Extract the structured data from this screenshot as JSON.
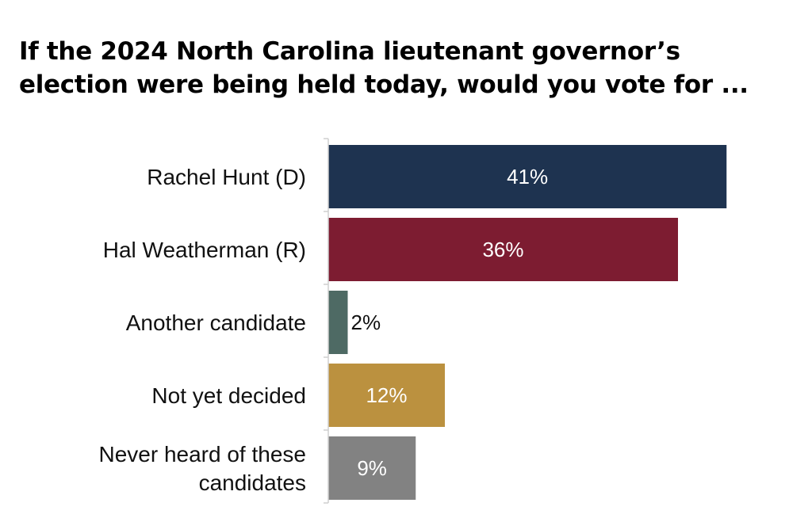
{
  "chart_data": {
    "type": "bar",
    "orientation": "horizontal",
    "title": "If the 2024 North Carolina lieutenant governor’s election were being held today, would you vote for ...",
    "categories": [
      "Rachel Hunt (D)",
      "Hal Weatherman (R)",
      "Another candidate",
      "Not yet decided",
      "Never heard of these candidates"
    ],
    "values": [
      41,
      36,
      2,
      12,
      9
    ],
    "value_labels": [
      "41%",
      "36%",
      "2%",
      "12%",
      "9%"
    ],
    "colors": [
      "#1e3350",
      "#7d1c31",
      "#4e6a64",
      "#bb913f",
      "#828282"
    ],
    "xlim": [
      0,
      45
    ],
    "grid": false,
    "legend": "none",
    "xlabel": "",
    "ylabel": ""
  }
}
